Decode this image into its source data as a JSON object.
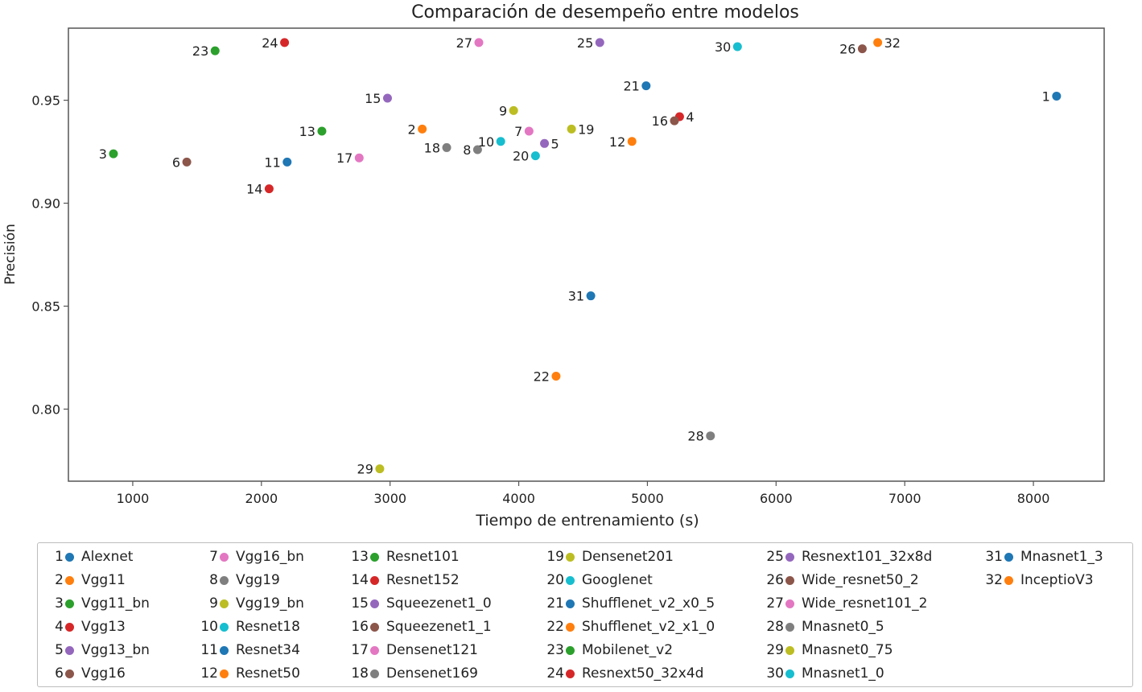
{
  "chart_data": {
    "type": "scatter",
    "title": "Comparación de desempeño entre modelos",
    "xlabel": "Tiempo de entrenamiento (s)",
    "ylabel": "Precisión",
    "xlim": [
      500,
      8550
    ],
    "ylim": [
      0.765,
      0.985
    ],
    "xticks": [
      1000,
      2000,
      3000,
      4000,
      5000,
      6000,
      7000,
      8000
    ],
    "yticks": [
      0.8,
      0.85,
      0.9,
      0.95
    ],
    "ytick_labels": [
      "0.80",
      "0.85",
      "0.90",
      "0.95"
    ],
    "grid": false,
    "legend_position": "below",
    "points": [
      {
        "id": "1",
        "name": "Alexnet",
        "x": 8180,
        "y": 0.952,
        "color": "#1f77b4",
        "label_side": "left"
      },
      {
        "id": "2",
        "name": "Vgg11",
        "x": 3250,
        "y": 0.936,
        "color": "#ff7f0e",
        "label_side": "left"
      },
      {
        "id": "3",
        "name": "Vgg11_bn",
        "x": 850,
        "y": 0.924,
        "color": "#2ca02c",
        "label_side": "left"
      },
      {
        "id": "4",
        "name": "Vgg13",
        "x": 5250,
        "y": 0.942,
        "color": "#d62728",
        "label_side": "right"
      },
      {
        "id": "5",
        "name": "Vgg13_bn",
        "x": 4200,
        "y": 0.929,
        "color": "#9467bd",
        "label_side": "right"
      },
      {
        "id": "6",
        "name": "Vgg16",
        "x": 1420,
        "y": 0.92,
        "color": "#8c564b",
        "label_side": "left"
      },
      {
        "id": "7",
        "name": "Vgg16_bn",
        "x": 4080,
        "y": 0.935,
        "color": "#e377c2",
        "label_side": "left"
      },
      {
        "id": "8",
        "name": "Vgg19",
        "x": 3680,
        "y": 0.926,
        "color": "#7f7f7f",
        "label_side": "left"
      },
      {
        "id": "9",
        "name": "Vgg19_bn",
        "x": 3960,
        "y": 0.945,
        "color": "#bcbd22",
        "label_side": "left"
      },
      {
        "id": "10",
        "name": "Resnet18",
        "x": 3860,
        "y": 0.93,
        "color": "#17becf",
        "label_side": "left"
      },
      {
        "id": "11",
        "name": "Resnet34",
        "x": 2200,
        "y": 0.92,
        "color": "#1f77b4",
        "label_side": "left"
      },
      {
        "id": "12",
        "name": "Resnet50",
        "x": 4880,
        "y": 0.93,
        "color": "#ff7f0e",
        "label_side": "left"
      },
      {
        "id": "13",
        "name": "Resnet101",
        "x": 2470,
        "y": 0.935,
        "color": "#2ca02c",
        "label_side": "left"
      },
      {
        "id": "14",
        "name": "Resnet152",
        "x": 2060,
        "y": 0.907,
        "color": "#d62728",
        "label_side": "left"
      },
      {
        "id": "15",
        "name": "Squeezenet1_0",
        "x": 2980,
        "y": 0.951,
        "color": "#9467bd",
        "label_side": "left"
      },
      {
        "id": "16",
        "name": "Squeezenet1_1",
        "x": 5210,
        "y": 0.94,
        "color": "#8c564b",
        "label_side": "left"
      },
      {
        "id": "17",
        "name": "Densenet121",
        "x": 2760,
        "y": 0.922,
        "color": "#e377c2",
        "label_side": "left"
      },
      {
        "id": "18",
        "name": "Densenet169",
        "x": 3440,
        "y": 0.927,
        "color": "#7f7f7f",
        "label_side": "left"
      },
      {
        "id": "19",
        "name": "Densenet201",
        "x": 4410,
        "y": 0.936,
        "color": "#bcbd22",
        "label_side": "right"
      },
      {
        "id": "20",
        "name": "Googlenet",
        "x": 4130,
        "y": 0.923,
        "color": "#17becf",
        "label_side": "left"
      },
      {
        "id": "21",
        "name": "Shufflenet_v2_x0_5",
        "x": 4990,
        "y": 0.957,
        "color": "#1f77b4",
        "label_side": "left"
      },
      {
        "id": "22",
        "name": "Shufflenet_v2_x1_0",
        "x": 4290,
        "y": 0.816,
        "color": "#ff7f0e",
        "label_side": "left"
      },
      {
        "id": "23",
        "name": "Mobilenet_v2",
        "x": 1640,
        "y": 0.974,
        "color": "#2ca02c",
        "label_side": "left"
      },
      {
        "id": "24",
        "name": "Resnext50_32x4d",
        "x": 2180,
        "y": 0.978,
        "color": "#d62728",
        "label_side": "left"
      },
      {
        "id": "25",
        "name": "Resnext101_32x8d",
        "x": 4630,
        "y": 0.978,
        "color": "#9467bd",
        "label_side": "left"
      },
      {
        "id": "26",
        "name": "Wide_resnet50_2",
        "x": 6670,
        "y": 0.975,
        "color": "#8c564b",
        "label_side": "left"
      },
      {
        "id": "27",
        "name": "Wide_resnet101_2",
        "x": 3690,
        "y": 0.978,
        "color": "#e377c2",
        "label_side": "left"
      },
      {
        "id": "28",
        "name": "Mnasnet0_5",
        "x": 5490,
        "y": 0.787,
        "color": "#7f7f7f",
        "label_side": "left"
      },
      {
        "id": "29",
        "name": "Mnasnet0_75",
        "x": 2920,
        "y": 0.771,
        "color": "#bcbd22",
        "label_side": "left"
      },
      {
        "id": "30",
        "name": "Mnasnet1_0",
        "x": 5700,
        "y": 0.976,
        "color": "#17becf",
        "label_side": "left"
      },
      {
        "id": "31",
        "name": "Mnasnet1_3",
        "x": 4560,
        "y": 0.855,
        "color": "#1f77b4",
        "label_side": "left"
      },
      {
        "id": "32",
        "name": "InceptioV3",
        "x": 6790,
        "y": 0.978,
        "color": "#ff7f0e",
        "label_side": "right"
      }
    ]
  }
}
